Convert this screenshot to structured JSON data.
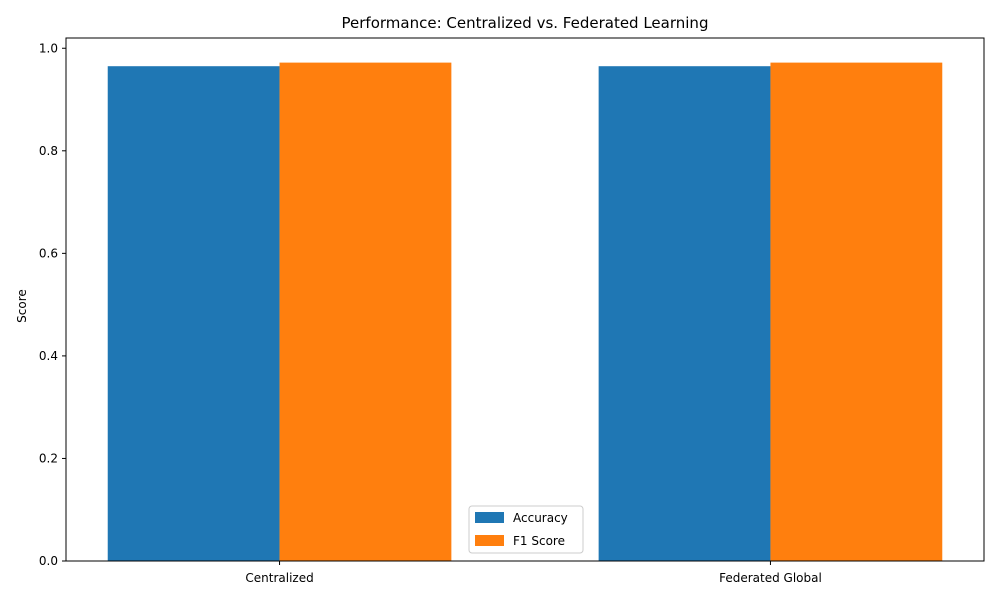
{
  "chart_data": {
    "type": "bar",
    "title": "Performance: Centralized vs. Federated Learning",
    "xlabel": "",
    "ylabel": "Score",
    "categories": [
      "Centralized",
      "Federated Global"
    ],
    "series": [
      {
        "name": "Accuracy",
        "values": [
          0.965,
          0.965
        ],
        "color": "#1f77b4"
      },
      {
        "name": "F1 Score",
        "values": [
          0.972,
          0.972
        ],
        "color": "#ff7f0e"
      }
    ],
    "ylim": [
      0,
      1.02
    ],
    "yticks": [
      "0.0",
      "0.2",
      "0.4",
      "0.6",
      "0.8",
      "1.0"
    ],
    "grid": false,
    "legend_position": "bottom-center"
  }
}
